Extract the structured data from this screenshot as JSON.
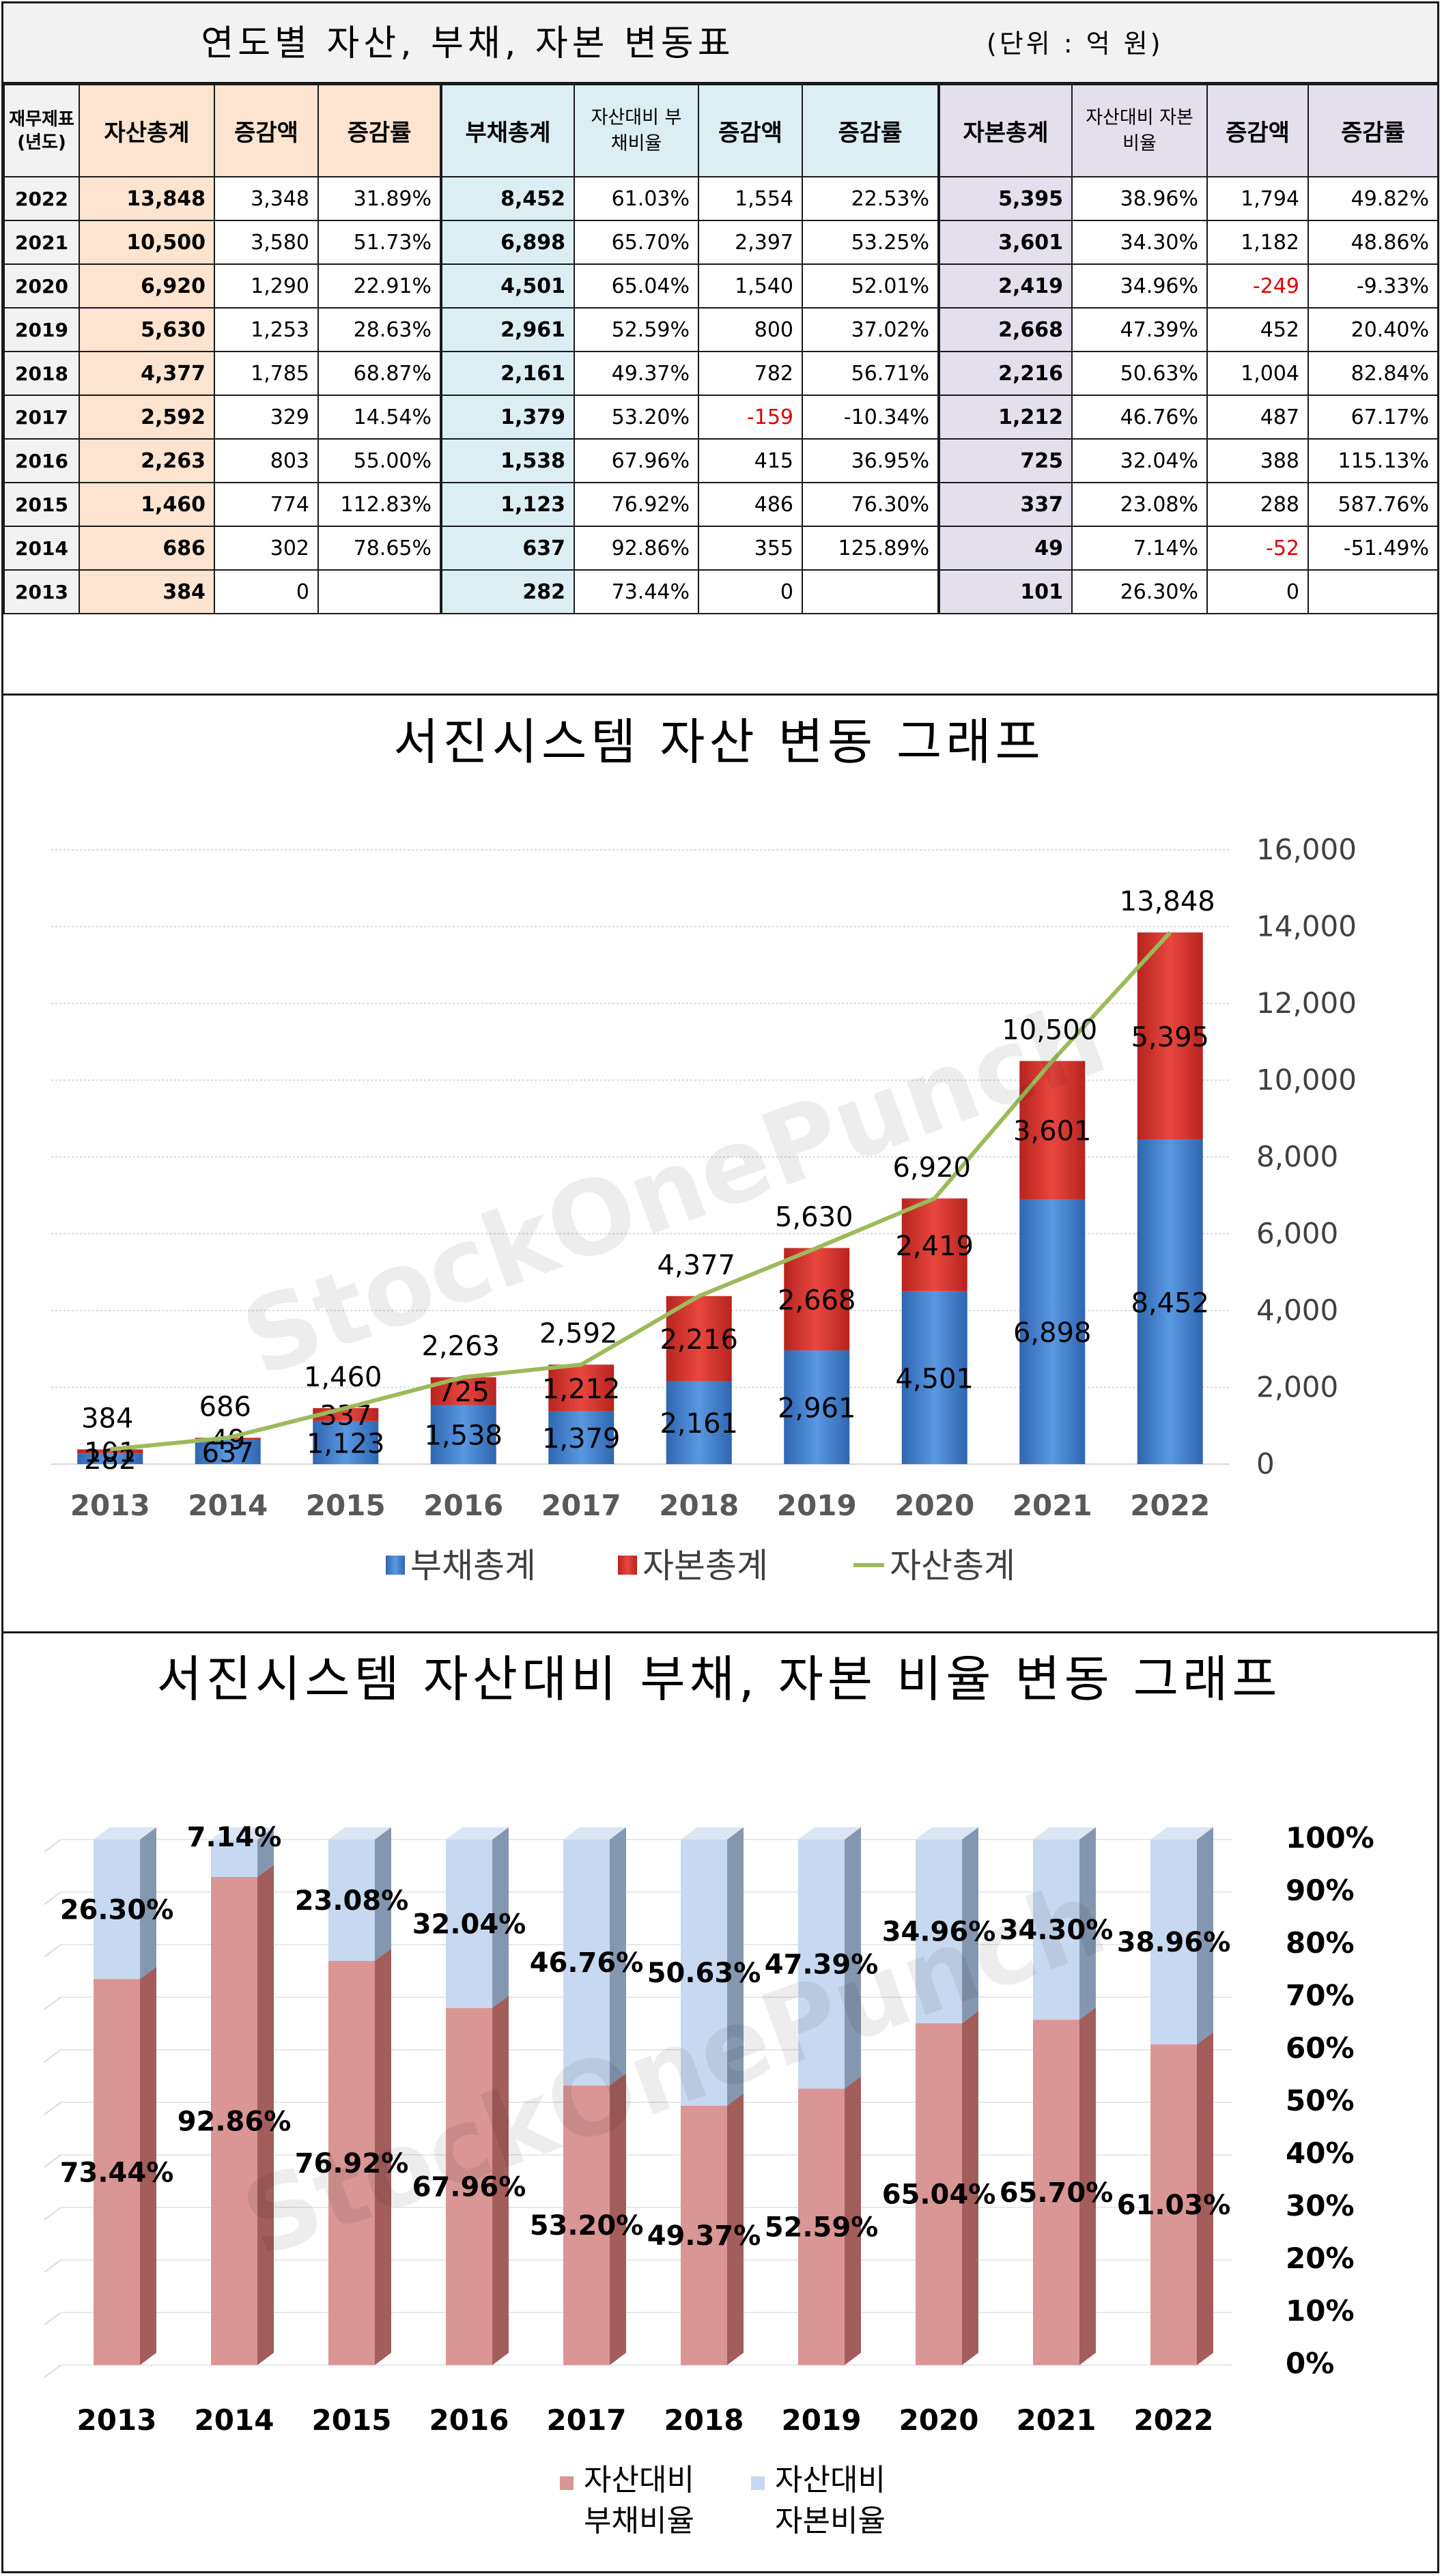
{
  "table": {
    "title": "연도별 자산, 부채, 자본 변동표",
    "unit": "(단위 : 억 원)",
    "headers": {
      "year": "재무제표 (년도)",
      "asset_total": "자산총계",
      "asset_change": "증감액",
      "asset_rate": "증감률",
      "liab_total": "부채총계",
      "liab_ratio": "자산대비 부채비율",
      "liab_change": "증감액",
      "liab_rate": "증감률",
      "eq_total": "자본총계",
      "eq_ratio": "자산대비 자본비율",
      "eq_change": "증감액",
      "eq_rate": "증감률"
    },
    "rows": [
      {
        "year": "2022",
        "asset_total": "13,848",
        "asset_change": "3,348",
        "asset_rate": "31.89%",
        "liab_total": "8,452",
        "liab_ratio": "61.03%",
        "liab_change": "1,554",
        "liab_rate": "22.53%",
        "eq_total": "5,395",
        "eq_ratio": "38.96%",
        "eq_change": "1,794",
        "eq_rate": "49.82%"
      },
      {
        "year": "2021",
        "asset_total": "10,500",
        "asset_change": "3,580",
        "asset_rate": "51.73%",
        "liab_total": "6,898",
        "liab_ratio": "65.70%",
        "liab_change": "2,397",
        "liab_rate": "53.25%",
        "eq_total": "3,601",
        "eq_ratio": "34.30%",
        "eq_change": "1,182",
        "eq_rate": "48.86%"
      },
      {
        "year": "2020",
        "asset_total": "6,920",
        "asset_change": "1,290",
        "asset_rate": "22.91%",
        "liab_total": "4,501",
        "liab_ratio": "65.04%",
        "liab_change": "1,540",
        "liab_rate": "52.01%",
        "eq_total": "2,419",
        "eq_ratio": "34.96%",
        "eq_change": "-249",
        "eq_rate": "-9.33%"
      },
      {
        "year": "2019",
        "asset_total": "5,630",
        "asset_change": "1,253",
        "asset_rate": "28.63%",
        "liab_total": "2,961",
        "liab_ratio": "52.59%",
        "liab_change": "800",
        "liab_rate": "37.02%",
        "eq_total": "2,668",
        "eq_ratio": "47.39%",
        "eq_change": "452",
        "eq_rate": "20.40%"
      },
      {
        "year": "2018",
        "asset_total": "4,377",
        "asset_change": "1,785",
        "asset_rate": "68.87%",
        "liab_total": "2,161",
        "liab_ratio": "49.37%",
        "liab_change": "782",
        "liab_rate": "56.71%",
        "eq_total": "2,216",
        "eq_ratio": "50.63%",
        "eq_change": "1,004",
        "eq_rate": "82.84%"
      },
      {
        "year": "2017",
        "asset_total": "2,592",
        "asset_change": "329",
        "asset_rate": "14.54%",
        "liab_total": "1,379",
        "liab_ratio": "53.20%",
        "liab_change": "-159",
        "liab_rate": "-10.34%",
        "eq_total": "1,212",
        "eq_ratio": "46.76%",
        "eq_change": "487",
        "eq_rate": "67.17%"
      },
      {
        "year": "2016",
        "asset_total": "2,263",
        "asset_change": "803",
        "asset_rate": "55.00%",
        "liab_total": "1,538",
        "liab_ratio": "67.96%",
        "liab_change": "415",
        "liab_rate": "36.95%",
        "eq_total": "725",
        "eq_ratio": "32.04%",
        "eq_change": "388",
        "eq_rate": "115.13%"
      },
      {
        "year": "2015",
        "asset_total": "1,460",
        "asset_change": "774",
        "asset_rate": "112.83%",
        "liab_total": "1,123",
        "liab_ratio": "76.92%",
        "liab_change": "486",
        "liab_rate": "76.30%",
        "eq_total": "337",
        "eq_ratio": "23.08%",
        "eq_change": "288",
        "eq_rate": "587.76%"
      },
      {
        "year": "2014",
        "asset_total": "686",
        "asset_change": "302",
        "asset_rate": "78.65%",
        "liab_total": "637",
        "liab_ratio": "92.86%",
        "liab_change": "355",
        "liab_rate": "125.89%",
        "eq_total": "49",
        "eq_ratio": "7.14%",
        "eq_change": "-52",
        "eq_rate": "-51.49%"
      },
      {
        "year": "2013",
        "asset_total": "384",
        "asset_change": "0",
        "asset_rate": "",
        "liab_total": "282",
        "liab_ratio": "73.44%",
        "liab_change": "0",
        "liab_rate": "",
        "eq_total": "101",
        "eq_ratio": "26.30%",
        "eq_change": "0",
        "eq_rate": ""
      }
    ]
  },
  "colors": {
    "asset_bg": "#fce4d0",
    "liab_bg": "#dbeef3",
    "eq_bg": "#e4dfec",
    "negative": "#e00000",
    "liab_bar": "#4a86d4",
    "eq_bar": "#d9332e",
    "asset_line": "#9bbb59",
    "liab_ratio_bar": "#d99694",
    "eq_ratio_bar": "#c6d9f1"
  },
  "watermark": "StockOnePunch",
  "chart_data": [
    {
      "type": "bar",
      "stacked": true,
      "title": "서진시스템 자산 변동 그래프",
      "categories": [
        "2013",
        "2014",
        "2015",
        "2016",
        "2017",
        "2018",
        "2019",
        "2020",
        "2021",
        "2022"
      ],
      "series": [
        {
          "name": "부채총계",
          "kind": "bar",
          "values": [
            282,
            637,
            1123,
            1538,
            1379,
            2161,
            2961,
            4501,
            6898,
            8452
          ]
        },
        {
          "name": "자본총계",
          "kind": "bar",
          "values": [
            101,
            49,
            337,
            725,
            1212,
            2216,
            2668,
            2419,
            3601,
            5395
          ]
        },
        {
          "name": "자산총계",
          "kind": "line",
          "values": [
            384,
            686,
            1460,
            2263,
            2592,
            4377,
            5630,
            6920,
            10500,
            13848
          ]
        }
      ],
      "y_ticks": [
        "0",
        "2,000",
        "4,000",
        "6,000",
        "8,000",
        "10,000",
        "12,000",
        "14,000",
        "16,000"
      ],
      "ylim": [
        0,
        16000
      ],
      "legend": "bottom"
    },
    {
      "type": "bar",
      "stacked": true,
      "percent": true,
      "title": "서진시스템 자산대비 부채, 자본 비율 변동 그래프",
      "categories": [
        "2013",
        "2014",
        "2015",
        "2016",
        "2017",
        "2018",
        "2019",
        "2020",
        "2021",
        "2022"
      ],
      "series": [
        {
          "name": "자산대비 부채비율",
          "values": [
            73.44,
            92.86,
            76.92,
            67.96,
            53.2,
            49.37,
            52.59,
            65.04,
            65.7,
            61.03
          ]
        },
        {
          "name": "자산대비 자본비율",
          "values": [
            26.3,
            7.14,
            23.08,
            32.04,
            46.76,
            50.63,
            47.39,
            34.96,
            34.3,
            38.96
          ]
        }
      ],
      "y_ticks": [
        "0%",
        "10%",
        "20%",
        "30%",
        "40%",
        "50%",
        "60%",
        "70%",
        "80%",
        "90%",
        "100%"
      ],
      "ylim": [
        0,
        100
      ],
      "legend": "bottom",
      "legend_labels": [
        [
          "자산대비",
          "부채비율"
        ],
        [
          "자산대비",
          "자본비율"
        ]
      ]
    }
  ]
}
